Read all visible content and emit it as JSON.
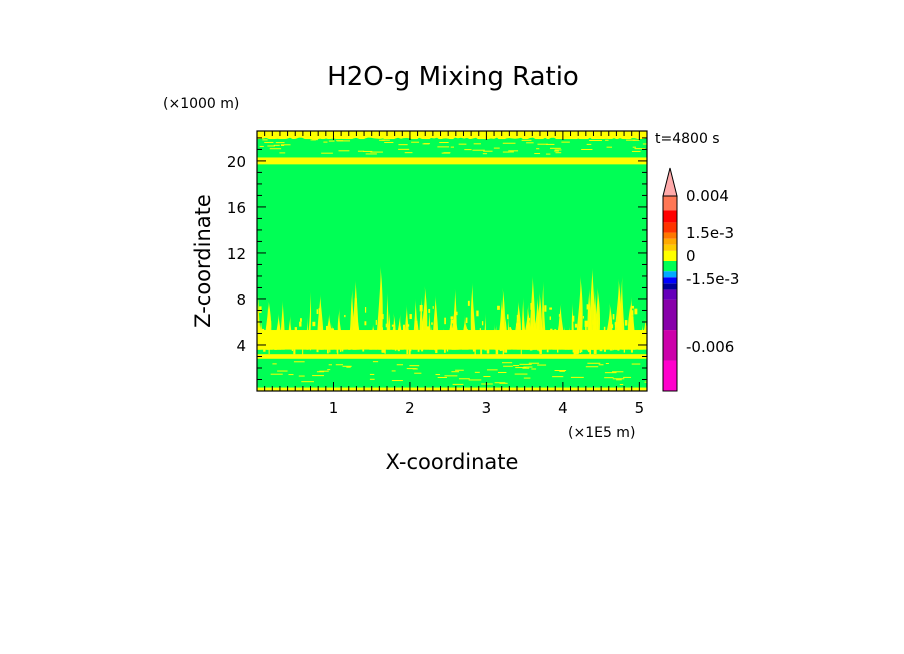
{
  "chart_data": {
    "type": "heatmap",
    "title": "H2O-g Mixing Ratio",
    "xlabel": "X-coordinate",
    "ylabel": "Z-coordinate",
    "x_scale_label": "(×1E5 m)",
    "y_scale_label": "(×1000 m)",
    "time_label": "t=4800 s",
    "xlim": [
      0,
      5.1
    ],
    "ylim": [
      0,
      22.6
    ],
    "x_ticks": [
      1,
      2,
      3,
      4,
      5
    ],
    "y_ticks": [
      4,
      8,
      12,
      16,
      20
    ],
    "colorbar_labels": [
      "0.004",
      "1.5e-3",
      "0",
      "-1.5e-3",
      "-0.006"
    ],
    "fields": {
      "background_green": "#00ff55",
      "yellow_bands_z": [
        [
          0,
          0.3
        ],
        [
          2.8,
          3.2
        ],
        [
          3.6,
          5.3
        ],
        [
          19.7,
          20.3
        ],
        [
          21.9,
          22.6
        ]
      ],
      "green_bands_z": [
        [
          0.6,
          2.6
        ],
        [
          20.6,
          21.9
        ]
      ],
      "plume_region_z": [
        3.6,
        10.5
      ]
    },
    "colors": {
      "yellow": "#ffff00",
      "green": "#00ff55",
      "colorbar": [
        "#ff00cc",
        "#cc00aa",
        "#8800aa",
        "#6600bb",
        "#000099",
        "#0000ff",
        "#00aaff",
        "#00ff55",
        "#ffff00",
        "#ffcc00",
        "#ffaa00",
        "#ff7700",
        "#ff3300",
        "#ff0000",
        "#ff7755",
        "#ffaaaa"
      ]
    }
  }
}
